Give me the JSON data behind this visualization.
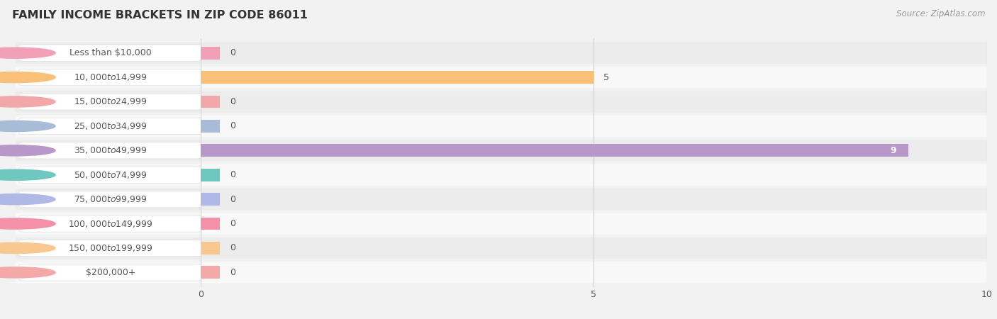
{
  "title": "FAMILY INCOME BRACKETS IN ZIP CODE 86011",
  "source": "Source: ZipAtlas.com",
  "categories": [
    "Less than $10,000",
    "$10,000 to $14,999",
    "$15,000 to $24,999",
    "$25,000 to $34,999",
    "$35,000 to $49,999",
    "$50,000 to $74,999",
    "$75,000 to $99,999",
    "$100,000 to $149,999",
    "$150,000 to $199,999",
    "$200,000+"
  ],
  "values": [
    0,
    5,
    0,
    0,
    9,
    0,
    0,
    0,
    0,
    0
  ],
  "bar_colors": [
    "#f2a0b8",
    "#f9c07a",
    "#f2a8a8",
    "#a8bcd8",
    "#b898c8",
    "#6ec8c0",
    "#b0b8e8",
    "#f490a8",
    "#f8c890",
    "#f4a8a8"
  ],
  "xlim": [
    0,
    10
  ],
  "xticks": [
    0,
    5,
    10
  ],
  "bg_color": "#f2f2f2",
  "row_alt_colors": [
    "#ececec",
    "#f8f8f8"
  ],
  "title_fontsize": 11.5,
  "label_fontsize": 9,
  "value_fontsize": 9,
  "source_fontsize": 8.5,
  "title_color": "#333333",
  "label_color": "#555555",
  "value_color_inside": "#ffffff",
  "value_color_outside": "#555555",
  "grid_color": "#d0d0d0"
}
